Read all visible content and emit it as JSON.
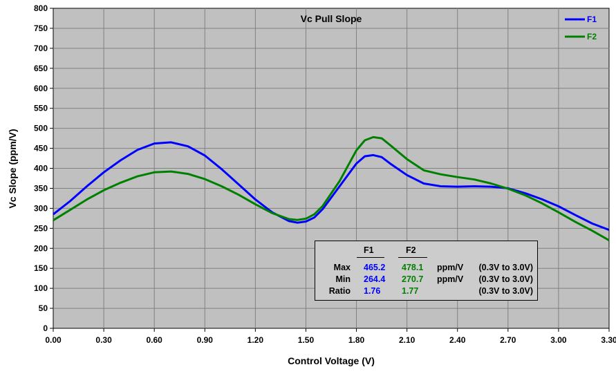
{
  "chart_data": {
    "type": "line",
    "title": "Vc Pull Slope",
    "xlabel": "Control Voltage (V)",
    "ylabel": "Vc Slope (ppm/V)",
    "xlim": [
      0,
      3.3
    ],
    "ylim": [
      0,
      800
    ],
    "x_ticks": [
      "0.00",
      "0.30",
      "0.60",
      "0.90",
      "1.20",
      "1.50",
      "1.80",
      "2.10",
      "2.40",
      "2.70",
      "3.00",
      "3.30"
    ],
    "y_ticks": [
      "0",
      "50",
      "100",
      "150",
      "200",
      "250",
      "300",
      "350",
      "400",
      "450",
      "500",
      "550",
      "600",
      "650",
      "700",
      "750",
      "800"
    ],
    "grid": true,
    "legend_position": "top-right",
    "series": [
      {
        "name": "F1",
        "color": "#0000ff",
        "points": [
          [
            0.0,
            285
          ],
          [
            0.1,
            318
          ],
          [
            0.2,
            355
          ],
          [
            0.3,
            390
          ],
          [
            0.4,
            420
          ],
          [
            0.5,
            446
          ],
          [
            0.6,
            462
          ],
          [
            0.7,
            465
          ],
          [
            0.8,
            455
          ],
          [
            0.9,
            432
          ],
          [
            1.0,
            398
          ],
          [
            1.1,
            360
          ],
          [
            1.2,
            322
          ],
          [
            1.3,
            290
          ],
          [
            1.4,
            268
          ],
          [
            1.45,
            264
          ],
          [
            1.5,
            267
          ],
          [
            1.55,
            277
          ],
          [
            1.6,
            298
          ],
          [
            1.7,
            355
          ],
          [
            1.8,
            412
          ],
          [
            1.85,
            430
          ],
          [
            1.9,
            433
          ],
          [
            1.95,
            428
          ],
          [
            2.0,
            412
          ],
          [
            2.1,
            383
          ],
          [
            2.2,
            362
          ],
          [
            2.3,
            355
          ],
          [
            2.4,
            354
          ],
          [
            2.5,
            355
          ],
          [
            2.6,
            354
          ],
          [
            2.7,
            350
          ],
          [
            2.8,
            338
          ],
          [
            2.9,
            323
          ],
          [
            3.0,
            305
          ],
          [
            3.1,
            283
          ],
          [
            3.2,
            262
          ],
          [
            3.3,
            246
          ]
        ]
      },
      {
        "name": "F2",
        "color": "#008000",
        "points": [
          [
            0.0,
            270
          ],
          [
            0.1,
            296
          ],
          [
            0.2,
            322
          ],
          [
            0.3,
            345
          ],
          [
            0.4,
            364
          ],
          [
            0.5,
            380
          ],
          [
            0.6,
            390
          ],
          [
            0.7,
            392
          ],
          [
            0.8,
            386
          ],
          [
            0.9,
            373
          ],
          [
            1.0,
            355
          ],
          [
            1.1,
            334
          ],
          [
            1.2,
            310
          ],
          [
            1.3,
            288
          ],
          [
            1.4,
            273
          ],
          [
            1.45,
            271
          ],
          [
            1.5,
            274
          ],
          [
            1.55,
            285
          ],
          [
            1.6,
            306
          ],
          [
            1.7,
            368
          ],
          [
            1.8,
            445
          ],
          [
            1.85,
            470
          ],
          [
            1.9,
            478
          ],
          [
            1.95,
            475
          ],
          [
            2.0,
            458
          ],
          [
            2.1,
            423
          ],
          [
            2.2,
            395
          ],
          [
            2.3,
            385
          ],
          [
            2.4,
            378
          ],
          [
            2.5,
            372
          ],
          [
            2.6,
            362
          ],
          [
            2.7,
            349
          ],
          [
            2.8,
            333
          ],
          [
            2.9,
            313
          ],
          [
            3.0,
            290
          ],
          [
            3.1,
            266
          ],
          [
            3.2,
            244
          ],
          [
            3.3,
            220
          ]
        ]
      }
    ],
    "stats_table": {
      "col_headers": [
        "F1",
        "F2"
      ],
      "rows": [
        {
          "label": "Max",
          "f1": "465.2",
          "f2": "478.1",
          "unit": "ppm/V",
          "range": "(0.3V to 3.0V)"
        },
        {
          "label": "Min",
          "f1": "264.4",
          "f2": "270.7",
          "unit": "ppm/V",
          "range": "(0.3V to 3.0V)"
        },
        {
          "label": "Ratio",
          "f1": "1.76",
          "f2": "1.77",
          "unit": "",
          "range": "(0.3V to 3.0V)"
        }
      ]
    }
  }
}
